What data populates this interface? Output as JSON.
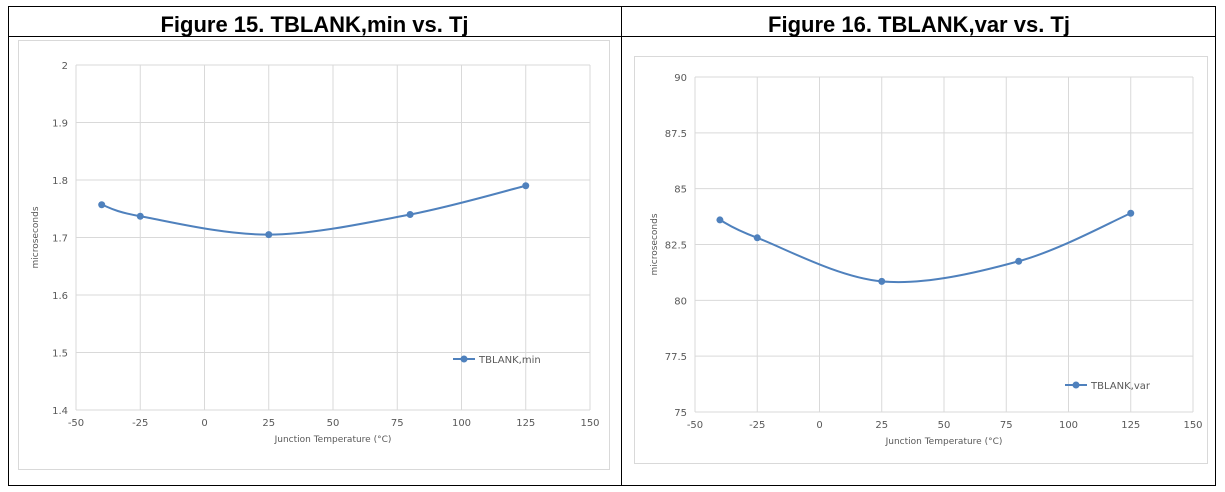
{
  "chart_data": [
    {
      "type": "line",
      "title": "Figure 15. TBLANK,min vs. Tj",
      "xlabel": "Junction Temperature (°C)",
      "ylabel": "microseconds",
      "xlim": [
        -50,
        150
      ],
      "ylim": [
        1.4,
        2
      ],
      "x_ticks": [
        "-50",
        "-25",
        "0",
        "25",
        "50",
        "75",
        "100",
        "125",
        "150"
      ],
      "y_ticks": [
        "1.4",
        "1.5",
        "1.6",
        "1.7",
        "1.8",
        "1.9",
        "2"
      ],
      "grid": true,
      "legend": "right-bottom",
      "series": [
        {
          "name": "TBLANK,min",
          "color": "#4f81bd",
          "x": [
            -40,
            -25,
            25,
            80,
            125
          ],
          "values": [
            1.757,
            1.737,
            1.705,
            1.74,
            1.79
          ]
        }
      ]
    },
    {
      "type": "line",
      "title": "Figure 16. TBLANK,var vs. Tj",
      "xlabel": "Junction Temperature (°C)",
      "ylabel": "microseconds",
      "xlim": [
        -50,
        150
      ],
      "ylim": [
        75,
        90
      ],
      "x_ticks": [
        "-50",
        "-25",
        "0",
        "25",
        "50",
        "75",
        "100",
        "125",
        "150"
      ],
      "y_ticks": [
        "75",
        "77.5",
        "80",
        "82.5",
        "85",
        "87.5",
        "90"
      ],
      "grid": true,
      "legend": "right-bottom",
      "series": [
        {
          "name": "TBLANK,var",
          "color": "#4f81bd",
          "x": [
            -40,
            -25,
            25,
            80,
            125
          ],
          "values": [
            83.6,
            82.8,
            80.85,
            81.75,
            83.9
          ]
        }
      ]
    }
  ]
}
